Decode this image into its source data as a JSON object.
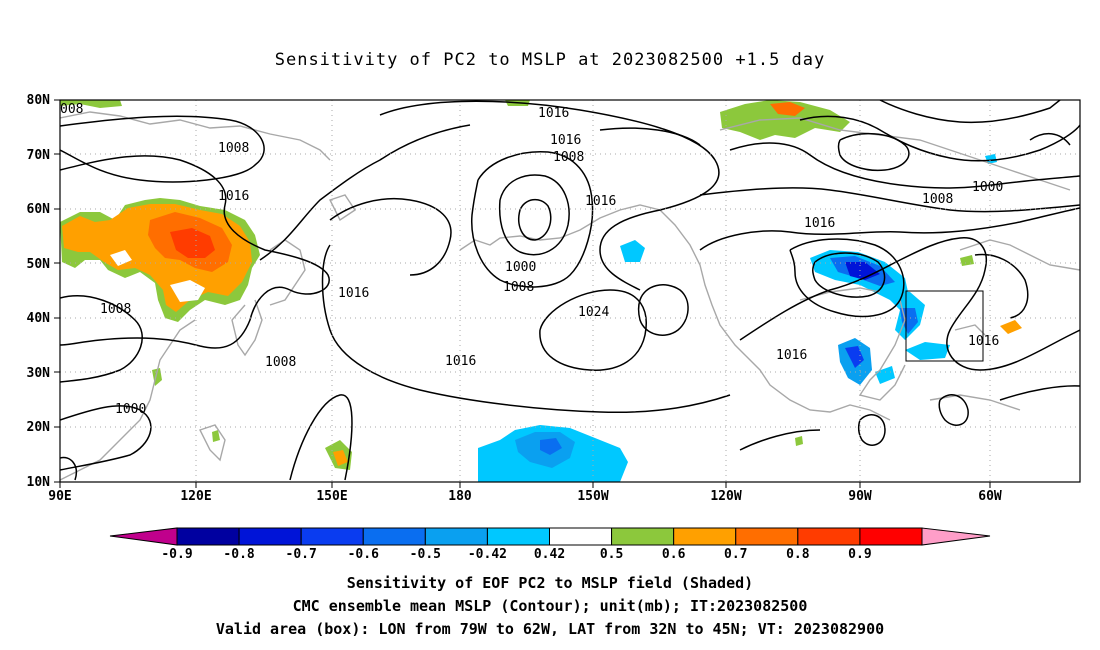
{
  "title": "Sensitivity of PC2 to MSLP at 2023082500 +1.5 day",
  "lat_labels": [
    "80N",
    "70N",
    "60N",
    "50N",
    "40N",
    "30N",
    "20N",
    "10N"
  ],
  "lon_labels": [
    "90E",
    "120E",
    "150E",
    "180",
    "150W",
    "120W",
    "90W",
    "60W"
  ],
  "contour_labels": [
    {
      "text": "008"
    },
    {
      "text": "1016"
    },
    {
      "text": "1016"
    },
    {
      "text": "1008"
    },
    {
      "text": "1008"
    },
    {
      "text": "1016"
    },
    {
      "text": "1016"
    },
    {
      "text": "1000"
    },
    {
      "text": "1008"
    },
    {
      "text": "1016"
    },
    {
      "text": "1000"
    },
    {
      "text": "1008"
    },
    {
      "text": "1024"
    },
    {
      "text": "1016"
    },
    {
      "text": "1008"
    },
    {
      "text": "1008"
    },
    {
      "text": "1016"
    },
    {
      "text": "1016"
    },
    {
      "text": "1000"
    },
    {
      "text": "1016"
    }
  ],
  "colorbar": {
    "labels": [
      "-0.9",
      "-0.8",
      "-0.7",
      "-0.6",
      "-0.5",
      "-0.42",
      "0.42",
      "0.5",
      "0.6",
      "0.7",
      "0.8",
      "0.9"
    ],
    "colors": {
      "under": "#c0008c",
      "bins": [
        "#0000a0",
        "#0014d8",
        "#0a3cf0",
        "#0a6ef0",
        "#0aa0f0",
        "#00c8ff",
        "#ffffff",
        "#8cc83c",
        "#ffa000",
        "#ff6e00",
        "#ff3c00",
        "#ff0000"
      ],
      "over": "#ff9ec8"
    }
  },
  "valid_box": {
    "lon_west": "79W",
    "lon_east": "62W",
    "lat_south": "32N",
    "lat_north": "45N"
  },
  "captions": [
    "Sensitivity of EOF PC2 to MSLP field (Shaded)",
    "CMC ensemble mean MSLP (Contour); unit(mb); IT:2023082500",
    "Valid area (box): LON from 79W to 62W, LAT from 32N to 45N; VT: 2023082900"
  ]
}
